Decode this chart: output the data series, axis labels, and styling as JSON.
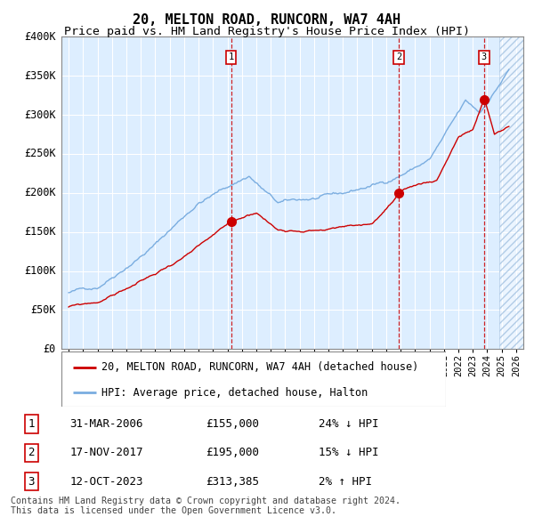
{
  "title": "20, MELTON ROAD, RUNCORN, WA7 4AH",
  "subtitle": "Price paid vs. HM Land Registry's House Price Index (HPI)",
  "ylim": [
    0,
    400000
  ],
  "yticks": [
    0,
    50000,
    100000,
    150000,
    200000,
    250000,
    300000,
    350000,
    400000
  ],
  "ytick_labels": [
    "£0",
    "£50K",
    "£100K",
    "£150K",
    "£200K",
    "£250K",
    "£300K",
    "£350K",
    "£400K"
  ],
  "xlim_start": 1994.5,
  "xlim_end": 2026.5,
  "hpi_color": "#7aade0",
  "price_color": "#cc0000",
  "background_color": "#ddeeff",
  "grid_color": "#ffffff",
  "sale_dates_year": [
    2006.25,
    2017.88,
    2023.78
  ],
  "sale_prices": [
    155000,
    195000,
    313385
  ],
  "sale_labels": [
    "1",
    "2",
    "3"
  ],
  "legend_line1": "20, MELTON ROAD, RUNCORN, WA7 4AH (detached house)",
  "legend_line2": "HPI: Average price, detached house, Halton",
  "table_rows": [
    [
      "1",
      "31-MAR-2006",
      "£155,000",
      "24% ↓ HPI"
    ],
    [
      "2",
      "17-NOV-2017",
      "£195,000",
      "15% ↓ HPI"
    ],
    [
      "3",
      "12-OCT-2023",
      "£313,385",
      "2% ↑ HPI"
    ]
  ],
  "footnote": "Contains HM Land Registry data © Crown copyright and database right 2024.\nThis data is licensed under the Open Government Licence v3.0."
}
